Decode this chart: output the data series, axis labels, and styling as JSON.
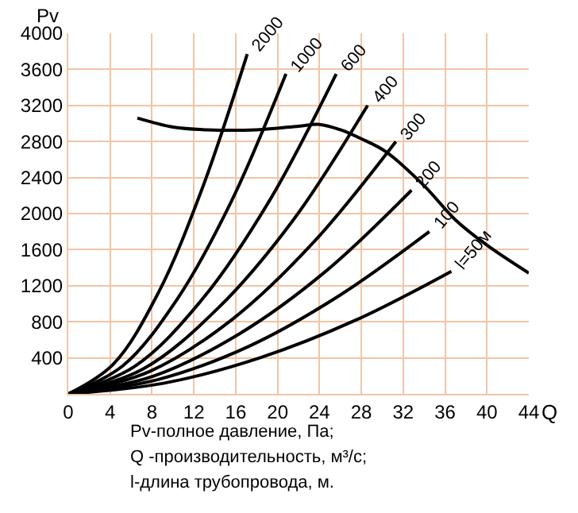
{
  "chart_data": {
    "type": "line",
    "xlabel": "Q",
    "ylabel": "Pv",
    "xlim": [
      0,
      44
    ],
    "xticks": [
      0,
      4,
      8,
      12,
      16,
      20,
      24,
      28,
      32,
      36,
      40,
      44
    ],
    "ylim": [
      0,
      4000
    ],
    "yticks": [
      400,
      800,
      1200,
      1600,
      2000,
      2400,
      2800,
      3200,
      3600,
      4000
    ],
    "grid": true,
    "legend": false,
    "marker": "none",
    "line_style": "solid",
    "series": [
      {
        "name": "2000",
        "color": "#000000",
        "x": [
          0,
          4.3,
          8.6,
          12.8,
          17.1
        ],
        "values": [
          0,
          330,
          1120,
          2280,
          3770
        ]
      },
      {
        "name": "1000",
        "color": "#000000",
        "x": [
          0,
          5.2,
          10.4,
          15.6,
          20.8
        ],
        "values": [
          0,
          310,
          1050,
          2140,
          3550
        ]
      },
      {
        "name": "600",
        "color": "#000000",
        "x": [
          0,
          6.4,
          12.8,
          19.2,
          25.6
        ],
        "values": [
          0,
          310,
          1050,
          2140,
          3550
        ]
      },
      {
        "name": "400",
        "color": "#000000",
        "x": [
          0,
          7.2,
          14.3,
          21.5,
          28.6
        ],
        "values": [
          0,
          280,
          950,
          1930,
          3200
        ]
      },
      {
        "name": "300",
        "color": "#000000",
        "x": [
          0,
          7.8,
          15.7,
          23.5,
          31.3
        ],
        "values": [
          0,
          250,
          830,
          1690,
          2800
        ]
      },
      {
        "name": "200",
        "color": "#000000",
        "x": [
          0,
          8.2,
          16.4,
          24.6,
          32.8
        ],
        "values": [
          0,
          200,
          670,
          1360,
          2260
        ]
      },
      {
        "name": "100",
        "color": "#000000",
        "x": [
          0,
          8.6,
          17.3,
          25.9,
          34.5
        ],
        "values": [
          0,
          160,
          530,
          1090,
          1800
        ]
      },
      {
        "name": "l=50м",
        "color": "#000000",
        "x": [
          0,
          9.2,
          18.3,
          27.5,
          36.6
        ],
        "values": [
          0,
          120,
          400,
          820,
          1360
        ]
      },
      {
        "color": "#000000",
        "x": [
          6.6,
          10,
          13.2,
          18,
          22,
          24,
          26,
          28,
          30.3,
          34,
          37,
          40,
          44
        ],
        "values": [
          3060,
          2960,
          2930,
          2930,
          2970,
          2990,
          2930,
          2830,
          2690,
          2310,
          1930,
          1650,
          1340
        ]
      }
    ],
    "annotations": [
      "Pv-полное давление, Па;",
      "Q -производительность, м³/с;",
      "l-длина трубопровода, м."
    ]
  }
}
